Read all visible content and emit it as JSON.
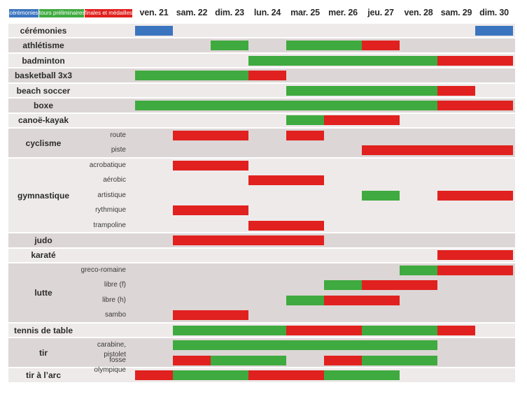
{
  "colors": {
    "ceremony": "#3b74bf",
    "prelim": "#3faa3f",
    "final": "#e0211f",
    "band_dark": "#ddd6d6",
    "band_light": "#efeaea"
  },
  "chart_data": {
    "type": "table",
    "legend": [
      {
        "key": "ceremony",
        "label": "cérémonies"
      },
      {
        "key": "prelim",
        "label": "tours préliminaires"
      },
      {
        "key": "final",
        "label": "finales et médailles"
      }
    ],
    "days": [
      "ven. 21",
      "sam. 22",
      "dim. 23",
      "lun. 24",
      "mar. 25",
      "mer. 26",
      "jeu. 27",
      "ven. 28",
      "sam. 29",
      "dim. 30"
    ],
    "sports": [
      {
        "name": "cérémonies",
        "events": [
          {
            "label": "",
            "segments": [
              {
                "start": "ven. 21",
                "end": "ven. 21",
                "type": "ceremony"
              },
              {
                "start": "dim. 30",
                "end": "dim. 30",
                "type": "ceremony"
              }
            ]
          }
        ]
      },
      {
        "name": "athlétisme",
        "events": [
          {
            "label": "",
            "segments": [
              {
                "start": "dim. 23",
                "end": "dim. 23",
                "type": "prelim"
              },
              {
                "start": "mar. 25",
                "end": "mer. 26",
                "type": "prelim"
              },
              {
                "start": "jeu. 27",
                "end": "jeu. 27",
                "type": "final"
              }
            ]
          }
        ]
      },
      {
        "name": "badminton",
        "events": [
          {
            "label": "",
            "segments": [
              {
                "start": "lun. 24",
                "end": "ven. 28",
                "type": "prelim"
              },
              {
                "start": "sam. 29",
                "end": "dim. 30",
                "type": "final"
              }
            ]
          }
        ]
      },
      {
        "name": "basketball 3x3",
        "events": [
          {
            "label": "",
            "segments": [
              {
                "start": "ven. 21",
                "end": "dim. 23",
                "type": "prelim"
              },
              {
                "start": "lun. 24",
                "end": "lun. 24",
                "type": "final"
              }
            ]
          }
        ]
      },
      {
        "name": "beach soccer",
        "events": [
          {
            "label": "",
            "segments": [
              {
                "start": "mar. 25",
                "end": "ven. 28",
                "type": "prelim"
              },
              {
                "start": "sam. 29",
                "end": "sam. 29",
                "type": "final"
              }
            ]
          }
        ]
      },
      {
        "name": "boxe",
        "events": [
          {
            "label": "",
            "segments": [
              {
                "start": "ven. 21",
                "end": "jeu. 27",
                "type": "prelim"
              },
              {
                "start": "ven. 28",
                "end": "ven. 28",
                "type": "prelim"
              },
              {
                "start": "sam. 29",
                "end": "dim. 30",
                "type": "final"
              }
            ]
          }
        ]
      },
      {
        "name": "canoë-kayak",
        "events": [
          {
            "label": "",
            "segments": [
              {
                "start": "mar. 25",
                "end": "mar. 25",
                "type": "prelim"
              },
              {
                "start": "mer. 26",
                "end": "jeu. 27",
                "type": "final"
              }
            ]
          }
        ]
      },
      {
        "name": "cyclisme",
        "events": [
          {
            "label": "route",
            "segments": [
              {
                "start": "sam. 22",
                "end": "dim. 23",
                "type": "final"
              },
              {
                "start": "mar. 25",
                "end": "mar. 25",
                "type": "final"
              }
            ]
          },
          {
            "label": "piste",
            "segments": [
              {
                "start": "jeu. 27",
                "end": "dim. 30",
                "type": "final"
              }
            ]
          }
        ]
      },
      {
        "name": "gymnastique",
        "events": [
          {
            "label": "acrobatique",
            "segments": [
              {
                "start": "sam. 22",
                "end": "dim. 23",
                "type": "final"
              }
            ]
          },
          {
            "label": "aérobic",
            "segments": [
              {
                "start": "lun. 24",
                "end": "mar. 25",
                "type": "final"
              }
            ]
          },
          {
            "label": "artistique",
            "segments": [
              {
                "start": "jeu. 27",
                "end": "jeu. 27",
                "type": "prelim"
              },
              {
                "start": "sam. 29",
                "end": "dim. 30",
                "type": "final"
              }
            ]
          },
          {
            "label": "rythmique",
            "segments": [
              {
                "start": "sam. 22",
                "end": "dim. 23",
                "type": "final"
              }
            ]
          },
          {
            "label": "trampoline",
            "segments": [
              {
                "start": "lun. 24",
                "end": "mar. 25",
                "type": "final"
              }
            ]
          }
        ]
      },
      {
        "name": "judo",
        "events": [
          {
            "label": "",
            "segments": [
              {
                "start": "sam. 22",
                "end": "mar. 25",
                "type": "final"
              }
            ]
          }
        ]
      },
      {
        "name": "karaté",
        "events": [
          {
            "label": "",
            "segments": [
              {
                "start": "sam. 29",
                "end": "dim. 30",
                "type": "final"
              }
            ]
          }
        ]
      },
      {
        "name": "lutte",
        "events": [
          {
            "label": "greco-romaine",
            "segments": [
              {
                "start": "ven. 28",
                "end": "ven. 28",
                "type": "prelim"
              },
              {
                "start": "sam. 29",
                "end": "dim. 30",
                "type": "final"
              }
            ]
          },
          {
            "label": "libre (f)",
            "segments": [
              {
                "start": "mer. 26",
                "end": "mer. 26",
                "type": "prelim"
              },
              {
                "start": "jeu. 27",
                "end": "ven. 28",
                "type": "final"
              }
            ]
          },
          {
            "label": "libre (h)",
            "segments": [
              {
                "start": "mar. 25",
                "end": "mar. 25",
                "type": "prelim"
              },
              {
                "start": "mer. 26",
                "end": "jeu. 27",
                "type": "final"
              }
            ]
          },
          {
            "label": "sambo",
            "segments": [
              {
                "start": "sam. 22",
                "end": "dim. 23",
                "type": "final"
              }
            ]
          }
        ]
      },
      {
        "name": "tennis de table",
        "events": [
          {
            "label": "",
            "segments": [
              {
                "start": "sam. 22",
                "end": "lun. 24",
                "type": "prelim"
              },
              {
                "start": "mar. 25",
                "end": "mer. 26",
                "type": "final"
              },
              {
                "start": "jeu. 27",
                "end": "ven. 28",
                "type": "prelim"
              },
              {
                "start": "sam. 29",
                "end": "sam. 29",
                "type": "final"
              }
            ]
          }
        ]
      },
      {
        "name": "tir",
        "events": [
          {
            "label": "carabine, pistolet",
            "segments": [
              {
                "start": "sam. 22",
                "end": "ven. 28",
                "type": "prelim"
              }
            ]
          },
          {
            "label": "fosse olympique",
            "segments": [
              {
                "start": "sam. 22",
                "end": "sam. 22",
                "type": "final"
              },
              {
                "start": "dim. 23",
                "end": "lun. 24",
                "type": "prelim"
              },
              {
                "start": "mer. 26",
                "end": "mer. 26",
                "type": "final"
              },
              {
                "start": "jeu. 27",
                "end": "ven. 28",
                "type": "prelim"
              }
            ]
          }
        ]
      },
      {
        "name": "tir à l’arc",
        "events": [
          {
            "label": "",
            "segments": [
              {
                "start": "ven. 21",
                "end": "ven. 21",
                "type": "final"
              },
              {
                "start": "sam. 22",
                "end": "dim. 23",
                "type": "prelim"
              },
              {
                "start": "lun. 24",
                "end": "mar. 25",
                "type": "final"
              },
              {
                "start": "mer. 26",
                "end": "jeu. 27",
                "type": "prelim"
              }
            ]
          }
        ]
      }
    ]
  }
}
